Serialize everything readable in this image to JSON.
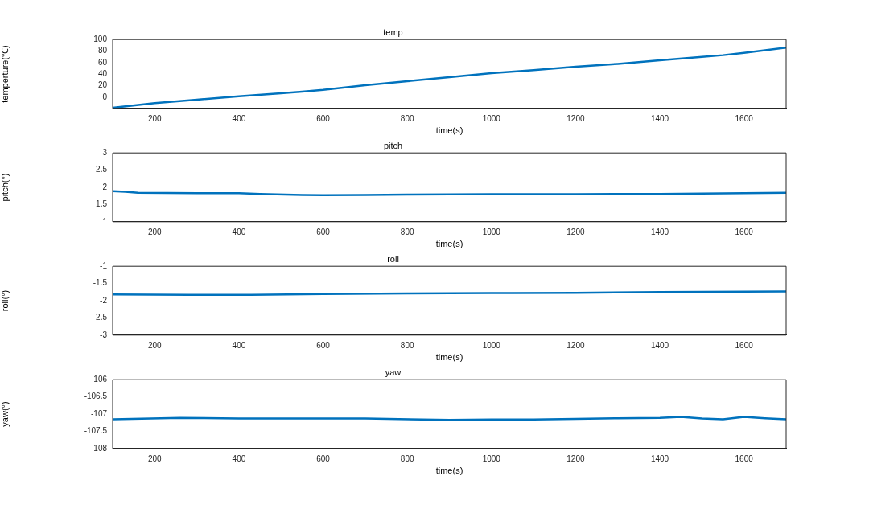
{
  "chart_data": [
    {
      "type": "line",
      "title": "temp",
      "xlabel": "time(s)",
      "ylabel": "temperture(℃)",
      "xlim": [
        100,
        1700
      ],
      "xticks": [
        200,
        400,
        600,
        800,
        1000,
        1200,
        1400,
        1600
      ],
      "ylim": [
        -19,
        100
      ],
      "yticks": [
        0,
        20,
        40,
        60,
        80,
        100
      ],
      "series": [
        {
          "color": "#0072bd",
          "x": [
            100,
            200,
            300,
            400,
            500,
            550,
            600,
            700,
            800,
            900,
            1000,
            1100,
            1200,
            1300,
            1400,
            1500,
            1550,
            1600,
            1700
          ],
          "values": [
            -18,
            -10,
            -4,
            2,
            7,
            10,
            13,
            21,
            28,
            35,
            42,
            47,
            53,
            58,
            64,
            70,
            73,
            77,
            86
          ]
        }
      ]
    },
    {
      "type": "line",
      "title": "pitch",
      "xlabel": "time(s)",
      "ylabel": "pitch(°)",
      "xlim": [
        100,
        1700
      ],
      "xticks": [
        200,
        400,
        600,
        800,
        1000,
        1200,
        1400,
        1600
      ],
      "ylim": [
        1,
        3
      ],
      "yticks": [
        1,
        1.5,
        2,
        2.5,
        3
      ],
      "series": [
        {
          "color": "#0072bd",
          "x": [
            100,
            130,
            160,
            300,
            400,
            450,
            550,
            600,
            700,
            800,
            1000,
            1200,
            1400,
            1600,
            1700
          ],
          "values": [
            1.89,
            1.87,
            1.84,
            1.83,
            1.83,
            1.81,
            1.78,
            1.77,
            1.78,
            1.79,
            1.8,
            1.8,
            1.81,
            1.83,
            1.84
          ]
        }
      ]
    },
    {
      "type": "line",
      "title": "roll",
      "xlabel": "time(s)",
      "ylabel": "roll(°)",
      "xlim": [
        100,
        1700
      ],
      "xticks": [
        200,
        400,
        600,
        800,
        1000,
        1200,
        1400,
        1600
      ],
      "ylim": [
        -3,
        -1
      ],
      "yticks": [
        -3,
        -2.5,
        -2,
        -1.5,
        -1
      ],
      "series": [
        {
          "color": "#0072bd",
          "x": [
            100,
            280,
            430,
            600,
            800,
            1000,
            1050,
            1200,
            1400,
            1700
          ],
          "values": [
            -1.82,
            -1.83,
            -1.83,
            -1.81,
            -1.79,
            -1.78,
            -1.78,
            -1.77,
            -1.75,
            -1.73
          ]
        }
      ]
    },
    {
      "type": "line",
      "title": "yaw",
      "xlabel": "time(s)",
      "ylabel": "yaw(°)",
      "xlim": [
        100,
        1700
      ],
      "xticks": [
        200,
        400,
        600,
        800,
        1000,
        1200,
        1400,
        1600
      ],
      "ylim": [
        -108,
        -106
      ],
      "yticks": [
        -108,
        -107.5,
        -107,
        -106.5,
        -106
      ],
      "series": [
        {
          "color": "#0072bd",
          "x": [
            100,
            260,
            400,
            600,
            700,
            900,
            1000,
            1100,
            1200,
            1300,
            1400,
            1450,
            1500,
            1550,
            1600,
            1650,
            1700
          ],
          "values": [
            -107.15,
            -107.11,
            -107.13,
            -107.13,
            -107.13,
            -107.17,
            -107.16,
            -107.16,
            -107.14,
            -107.12,
            -107.11,
            -107.08,
            -107.13,
            -107.15,
            -107.08,
            -107.12,
            -107.15
          ]
        }
      ]
    }
  ]
}
